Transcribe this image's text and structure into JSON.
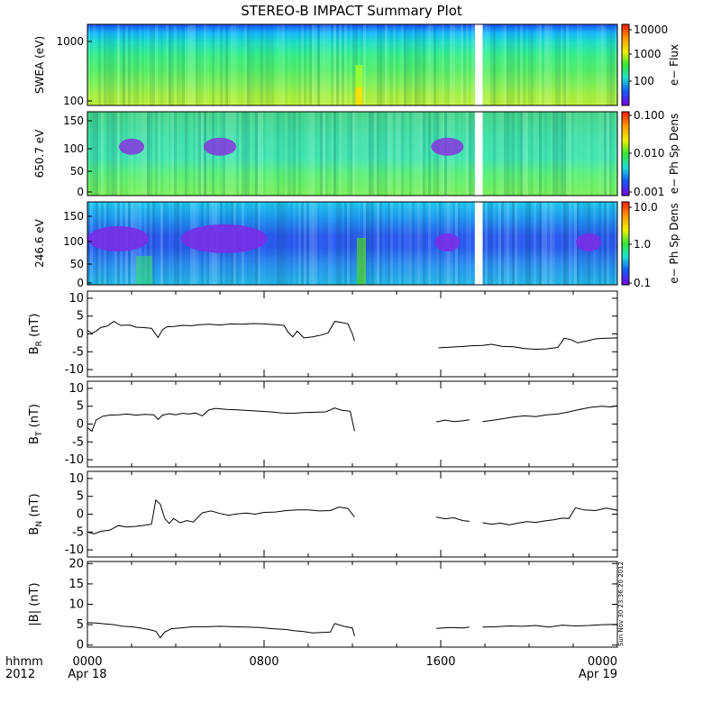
{
  "title": "STEREO-B IMPACT Summary Plot",
  "timestamp_note": "Sun Nov 30 23:36:20 2012",
  "x_axis": {
    "row1_labels": [
      "hhmm",
      "0000",
      "0800",
      "1600",
      "0000"
    ],
    "row2_labels": [
      "2012",
      "Apr 18",
      "Apr 19"
    ]
  },
  "spectrograms": [
    {
      "name": "swea",
      "ylabel": "SWEA (eV)",
      "ytick_labels": [
        "1000",
        "100"
      ],
      "colorbar_label": "e− Flux",
      "colorbar_ticks": [
        "10000",
        "1000",
        "100"
      ],
      "colorbar_palette": "rainbow-red-top",
      "data_gaps_hours": [
        [
          17.55,
          17.9
        ]
      ],
      "bright_features": [
        {
          "t": 12.3,
          "band": "low",
          "color": "#ffe000"
        },
        {
          "t": 12.3,
          "band": "mid",
          "color": "#99ff33"
        }
      ]
    },
    {
      "name": "pad650",
      "ylabel": "650.7 eV",
      "ytick_labels": [
        "150",
        "100",
        "50",
        "0"
      ],
      "colorbar_label": "e− Ph Sp Dens",
      "colorbar_ticks": [
        "0.100",
        "0.010",
        "0.001"
      ],
      "colorbar_palette": "rainbow-red-top",
      "data_gaps_hours": [
        [
          17.55,
          17.9
        ]
      ]
    },
    {
      "name": "pad246",
      "ylabel": "246.6 eV",
      "ytick_labels": [
        "150",
        "100",
        "50",
        "0"
      ],
      "colorbar_label": "e− Ph Sp Dens",
      "colorbar_ticks": [
        "10.0",
        "1.0",
        "0.1"
      ],
      "colorbar_palette": "rainbow-red-top",
      "data_gaps_hours": [
        [
          17.55,
          17.9
        ]
      ]
    }
  ],
  "chart_data": [
    {
      "type": "line",
      "panel": "BR",
      "ylabel": "B",
      "ylabel_sub": "R",
      "ylabel_unit": " (nT)",
      "ylim": [
        -12,
        12
      ],
      "yticks": [
        10,
        5,
        0,
        -5,
        -10
      ],
      "x_hours": [
        0.0,
        0.2,
        0.4,
        0.6,
        0.9,
        1.2,
        1.5,
        1.9,
        2.2,
        2.5,
        2.9,
        3.2,
        3.4,
        3.6,
        3.9,
        4.3,
        4.7,
        5.1,
        5.5,
        6.0,
        6.5,
        7.0,
        7.5,
        8.0,
        8.5,
        8.9,
        9.1,
        9.3,
        9.5,
        9.8,
        10.2,
        10.6,
        10.9,
        11.2,
        11.5,
        11.8,
        12.0,
        12.1,
        null,
        15.9,
        16.5,
        17.0,
        17.4,
        17.9,
        18.3,
        18.8,
        19.3,
        19.8,
        20.3,
        20.8,
        21.3,
        21.6,
        21.9,
        22.2,
        22.6,
        23.0,
        23.5,
        24.0
      ],
      "y": [
        1.0,
        0.2,
        0.8,
        1.8,
        2.2,
        3.5,
        2.4,
        2.5,
        1.9,
        1.8,
        1.6,
        -1.0,
        1.2,
        2.0,
        2.1,
        2.4,
        2.3,
        2.6,
        2.7,
        2.5,
        2.8,
        2.7,
        2.9,
        2.8,
        2.6,
        2.4,
        0.4,
        -0.8,
        0.8,
        -1.1,
        -0.8,
        -0.3,
        0.3,
        3.5,
        3.2,
        2.8,
        0.0,
        -2.0,
        null,
        -3.9,
        -3.7,
        -3.5,
        -3.3,
        -3.2,
        -2.9,
        -3.5,
        -3.6,
        -4.1,
        -4.3,
        -4.2,
        -3.8,
        -1.2,
        -1.6,
        -2.5,
        -2.0,
        -1.4,
        -1.2,
        -1.1
      ]
    },
    {
      "type": "line",
      "panel": "BT",
      "ylabel": "B",
      "ylabel_sub": "T",
      "ylabel_unit": " (nT)",
      "ylim": [
        -12,
        12
      ],
      "yticks": [
        10,
        5,
        0,
        -5,
        -10
      ],
      "x_hours": [
        0.0,
        0.2,
        0.4,
        0.7,
        1.0,
        1.4,
        1.8,
        2.2,
        2.6,
        3.0,
        3.2,
        3.4,
        3.7,
        4.0,
        4.3,
        4.6,
        4.9,
        5.2,
        5.5,
        5.8,
        6.3,
        6.8,
        7.3,
        7.8,
        8.3,
        8.8,
        9.3,
        9.8,
        10.3,
        10.8,
        11.2,
        11.5,
        11.9,
        12.1,
        null,
        15.8,
        16.2,
        16.6,
        17.0,
        17.3,
        null,
        17.9,
        18.4,
        18.9,
        19.3,
        19.8,
        20.3,
        20.8,
        21.3,
        21.8,
        22.3,
        22.8,
        23.3,
        23.7,
        24.0
      ],
      "y": [
        -1.0,
        -2.0,
        1.2,
        2.2,
        2.5,
        2.6,
        2.8,
        2.5,
        2.7,
        2.6,
        1.3,
        2.5,
        2.9,
        2.6,
        3.0,
        2.8,
        3.1,
        2.3,
        4.0,
        4.4,
        4.1,
        4.0,
        3.8,
        3.6,
        3.4,
        3.1,
        3.0,
        3.2,
        3.3,
        3.4,
        4.5,
        3.9,
        3.6,
        -2.0,
        null,
        0.6,
        1.1,
        0.7,
        0.9,
        1.2,
        null,
        0.7,
        1.1,
        1.6,
        2.0,
        2.3,
        2.1,
        2.6,
        2.8,
        3.4,
        4.1,
        4.7,
        5.0,
        4.8,
        5.1
      ]
    },
    {
      "type": "line",
      "panel": "BN",
      "ylabel": "B",
      "ylabel_sub": "N",
      "ylabel_unit": " (nT)",
      "ylim": [
        -12,
        12
      ],
      "yticks": [
        10,
        5,
        0,
        -5,
        -10
      ],
      "x_hours": [
        0.0,
        0.3,
        0.6,
        1.0,
        1.4,
        1.8,
        2.2,
        2.6,
        2.9,
        3.1,
        3.3,
        3.5,
        3.7,
        3.9,
        4.2,
        4.5,
        4.8,
        5.2,
        5.6,
        6.0,
        6.4,
        6.8,
        7.2,
        7.6,
        8.0,
        8.5,
        9.0,
        9.5,
        10.0,
        10.5,
        11.0,
        11.4,
        11.8,
        12.1,
        null,
        15.8,
        16.2,
        16.6,
        17.0,
        17.3,
        null,
        17.9,
        18.3,
        18.7,
        19.1,
        19.5,
        19.9,
        20.3,
        20.7,
        21.1,
        21.5,
        21.8,
        22.1,
        22.5,
        23.0,
        23.5,
        24.0
      ],
      "y": [
        -5.0,
        -5.5,
        -4.8,
        -4.5,
        -3.2,
        -3.6,
        -3.4,
        -3.1,
        -2.8,
        4.0,
        2.8,
        -1.2,
        -2.6,
        -1.2,
        -2.4,
        -1.8,
        -2.2,
        0.4,
        0.9,
        0.2,
        -0.3,
        0.1,
        0.3,
        0.0,
        0.5,
        0.6,
        1.0,
        1.2,
        1.2,
        0.9,
        1.0,
        2.0,
        1.6,
        -0.8,
        null,
        -0.8,
        -1.3,
        -1.0,
        -1.8,
        -2.0,
        null,
        -2.4,
        -2.8,
        -2.5,
        -3.0,
        -2.5,
        -2.1,
        -2.3,
        -1.9,
        -1.6,
        -1.1,
        -1.2,
        1.8,
        1.2,
        1.0,
        1.7,
        1.1
      ]
    },
    {
      "type": "line",
      "panel": "Bmag",
      "ylabel": "|B|",
      "ylabel_sub": "",
      "ylabel_unit": " (nT)",
      "ylim": [
        -0.5,
        20.5
      ],
      "yticks": [
        20,
        15,
        10,
        5,
        0
      ],
      "x_hours": [
        0.0,
        0.4,
        0.8,
        1.2,
        1.6,
        2.0,
        2.4,
        2.8,
        3.1,
        3.3,
        3.5,
        3.8,
        4.2,
        4.8,
        5.4,
        6.0,
        6.6,
        7.2,
        7.8,
        8.4,
        9.0,
        9.4,
        9.8,
        10.2,
        10.6,
        11.0,
        11.2,
        11.6,
        12.0,
        12.1,
        null,
        15.8,
        16.4,
        17.0,
        17.3,
        null,
        17.9,
        18.5,
        19.1,
        19.7,
        20.3,
        20.9,
        21.5,
        22.1,
        22.7,
        23.3,
        24.0
      ],
      "y": [
        5.5,
        5.4,
        5.2,
        5.0,
        4.6,
        4.5,
        4.2,
        3.8,
        3.4,
        1.8,
        3.2,
        4.0,
        4.2,
        4.5,
        4.5,
        4.6,
        4.5,
        4.4,
        4.3,
        4.0,
        3.8,
        3.5,
        3.3,
        3.0,
        3.1,
        3.2,
        5.3,
        4.6,
        4.2,
        2.2,
        null,
        4.1,
        4.3,
        4.2,
        4.4,
        null,
        4.4,
        4.5,
        4.7,
        4.6,
        4.8,
        4.4,
        4.9,
        4.7,
        4.8,
        5.0,
        5.1
      ]
    }
  ]
}
